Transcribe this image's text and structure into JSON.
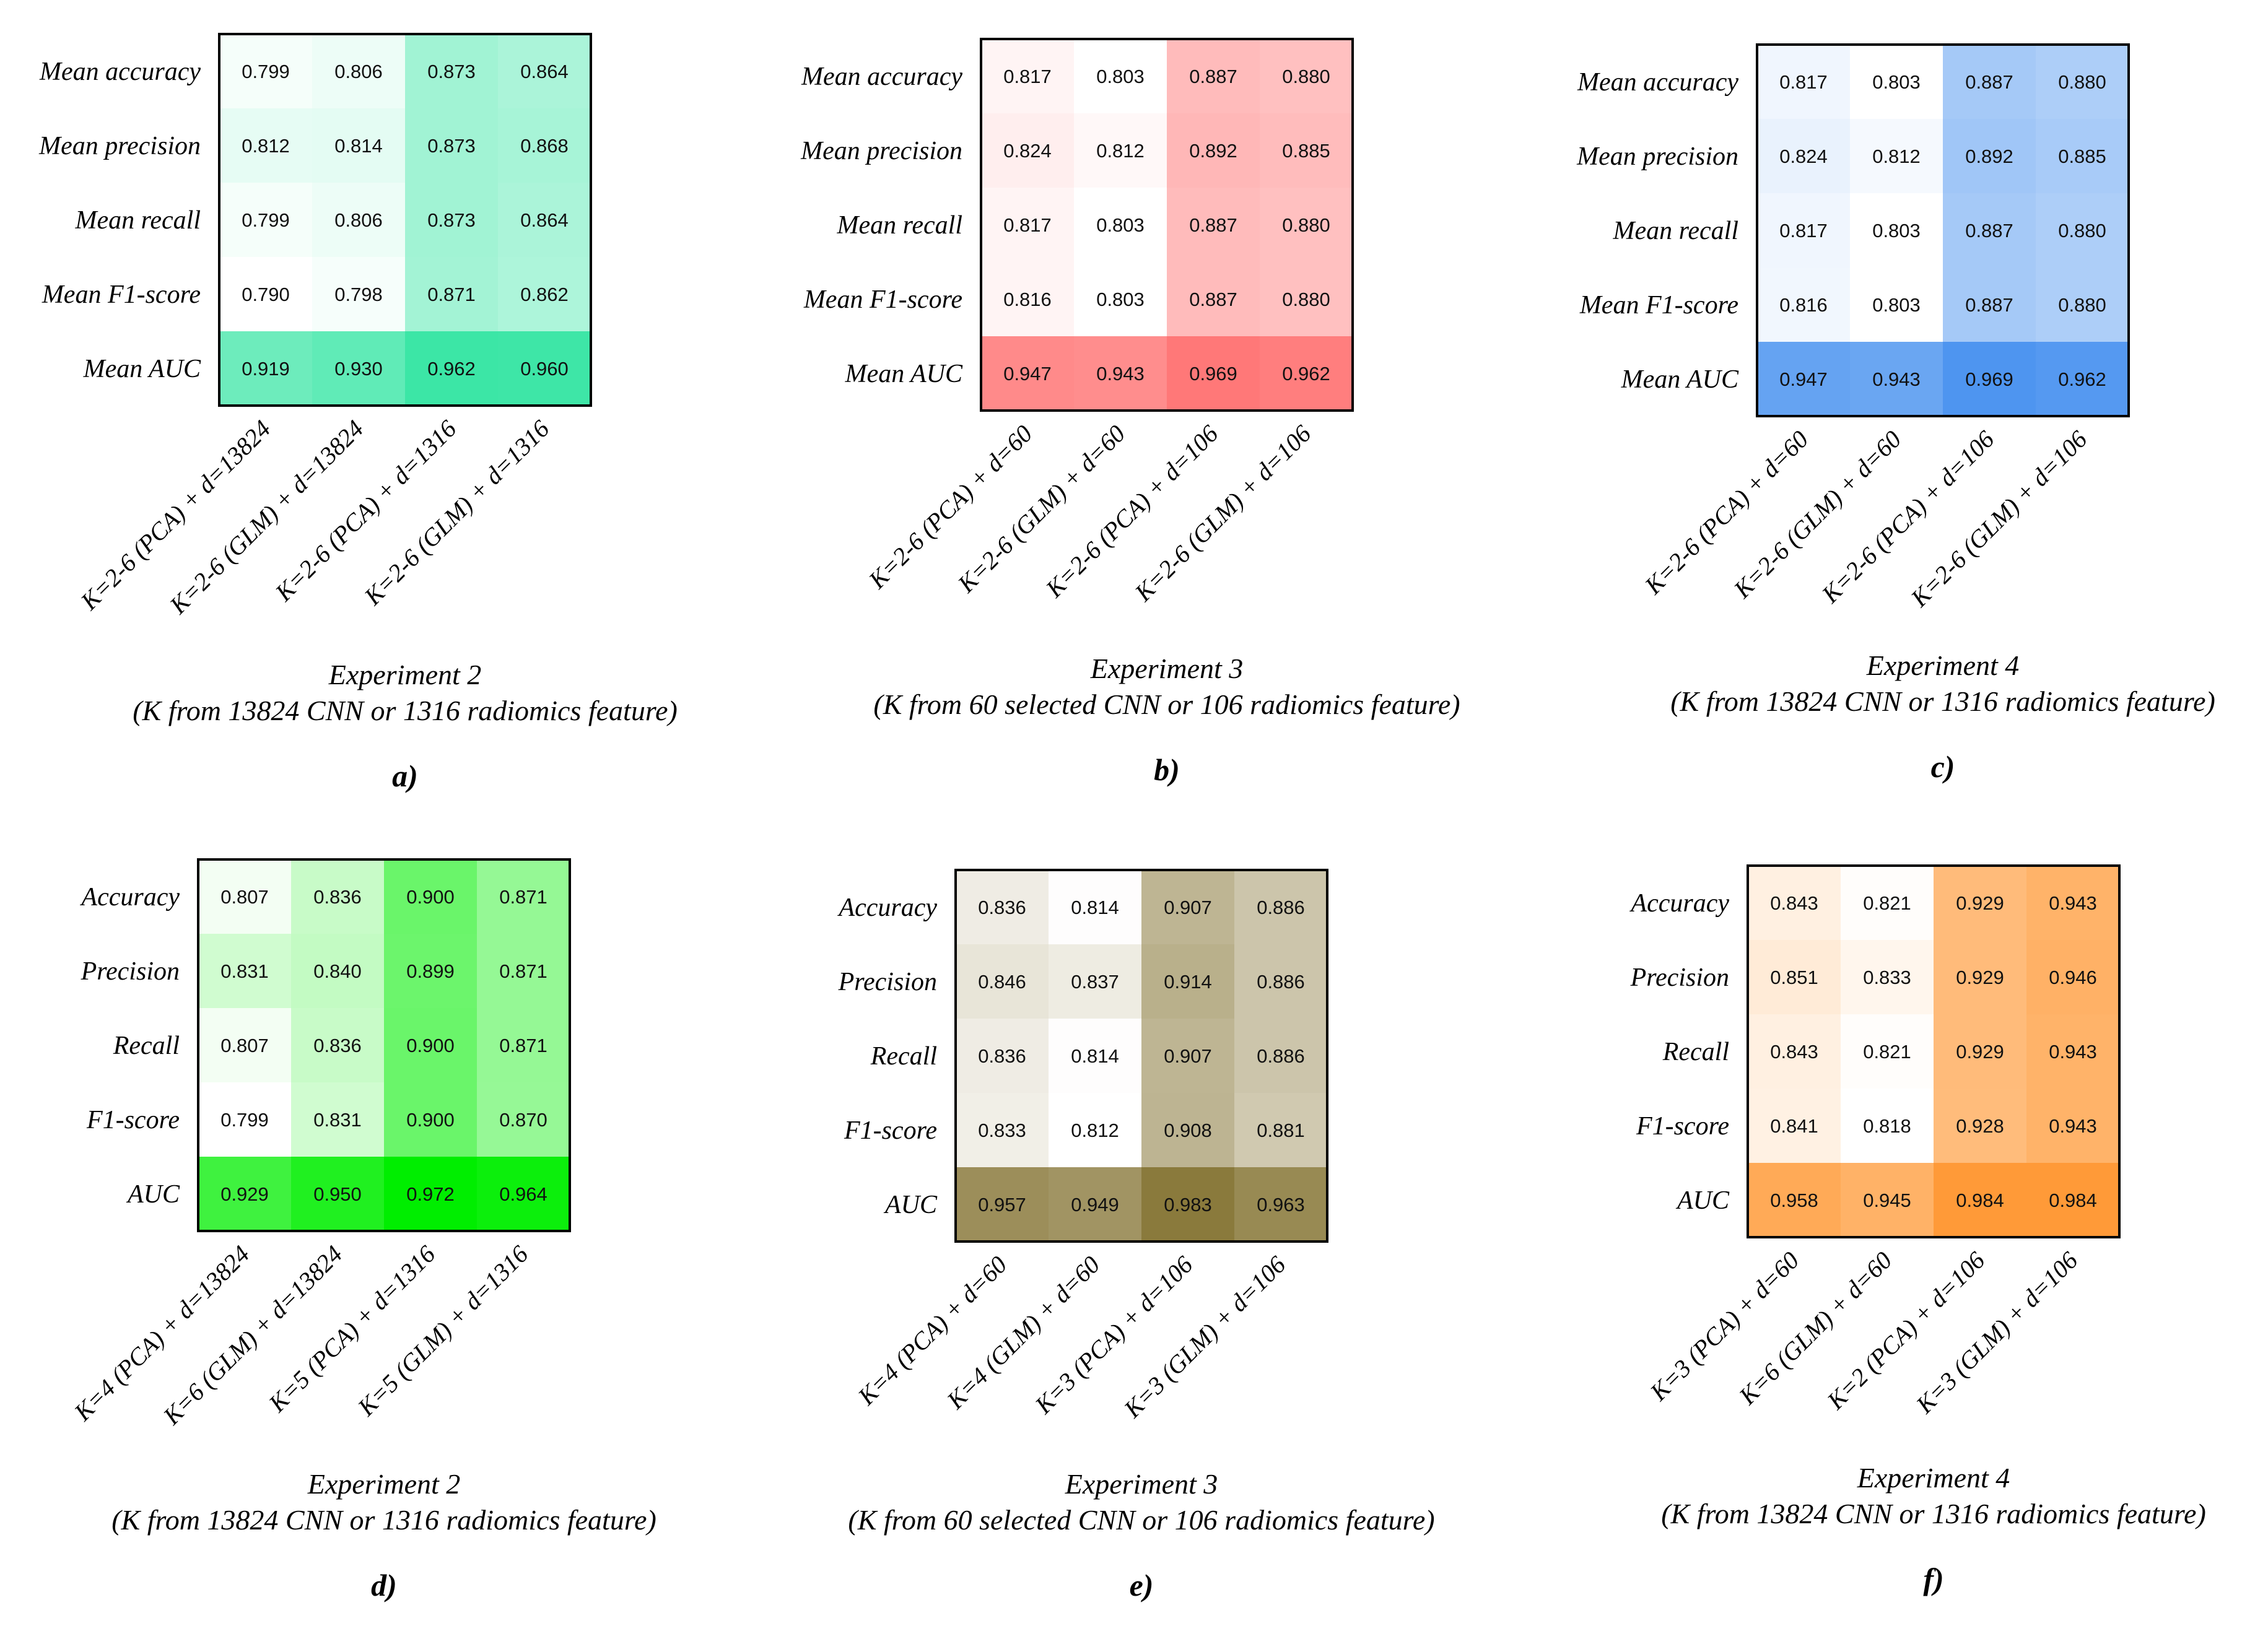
{
  "chart_data": [
    {
      "type": "heatmap",
      "panel": "a)",
      "title": "Experiment 2",
      "subtitle": "(K from 13824 CNN or 1316 radiomics feature)",
      "color": "#3CE6A6",
      "rows": [
        "Mean accuracy",
        "Mean precision",
        "Mean recall",
        "Mean F1-score",
        "Mean AUC"
      ],
      "columns": [
        "K=2-6 (PCA) + d=13824",
        "K=2-6 (GLM) + d=13824",
        "K=2-6 (PCA) + d=1316",
        "K=2-6 (GLM) + d=1316"
      ],
      "values": [
        [
          "0.799",
          "0.806",
          "0.873",
          "0.864"
        ],
        [
          "0.812",
          "0.814",
          "0.873",
          "0.868"
        ],
        [
          "0.799",
          "0.806",
          "0.873",
          "0.864"
        ],
        [
          "0.790",
          "0.798",
          "0.871",
          "0.862"
        ],
        [
          "0.919",
          "0.930",
          "0.962",
          "0.960"
        ]
      ]
    },
    {
      "type": "heatmap",
      "panel": "b)",
      "title": "Experiment 3",
      "subtitle": "(K from 60 selected CNN or 106 radiomics feature)",
      "color": "#FF7878",
      "rows": [
        "Mean accuracy",
        "Mean precision",
        "Mean recall",
        "Mean F1-score",
        "Mean AUC"
      ],
      "columns": [
        "K=2-6 (PCA) + d=60",
        "K=2-6 (GLM) + d=60",
        "K=2-6 (PCA) + d=106",
        "K=2-6 (GLM) + d=106"
      ],
      "values": [
        [
          "0.817",
          "0.803",
          "0.887",
          "0.880"
        ],
        [
          "0.824",
          "0.812",
          "0.892",
          "0.885"
        ],
        [
          "0.817",
          "0.803",
          "0.887",
          "0.880"
        ],
        [
          "0.816",
          "0.803",
          "0.887",
          "0.880"
        ],
        [
          "0.947",
          "0.943",
          "0.969",
          "0.962"
        ]
      ]
    },
    {
      "type": "heatmap",
      "panel": "c)",
      "title": "Experiment 4",
      "subtitle": "(K from 13824 CNN or 1316 radiomics feature)",
      "color": "#4E95F0",
      "rows": [
        "Mean accuracy",
        "Mean precision",
        "Mean recall",
        "Mean F1-score",
        "Mean AUC"
      ],
      "columns": [
        "K=2-6 (PCA) + d=60",
        "K=2-6 (GLM) + d=60",
        "K=2-6 (PCA) + d=106",
        "K=2-6 (GLM) + d=106"
      ],
      "values": [
        [
          "0.817",
          "0.803",
          "0.887",
          "0.880"
        ],
        [
          "0.824",
          "0.812",
          "0.892",
          "0.885"
        ],
        [
          "0.817",
          "0.803",
          "0.887",
          "0.880"
        ],
        [
          "0.816",
          "0.803",
          "0.887",
          "0.880"
        ],
        [
          "0.947",
          "0.943",
          "0.969",
          "0.962"
        ]
      ]
    },
    {
      "type": "heatmap",
      "panel": "d)",
      "title": "Experiment 2",
      "subtitle": "(K from 13824 CNN or 1316 radiomics feature)",
      "color": "#00EE00",
      "rows": [
        "Accuracy",
        "Precision",
        "Recall",
        "F1-score",
        "AUC"
      ],
      "columns": [
        "K=4 (PCA) + d=13824",
        "K=6 (GLM) + d=13824",
        "K=5 (PCA) + d=1316",
        "K=5 (GLM) + d=1316"
      ],
      "values": [
        [
          "0.807",
          "0.836",
          "0.900",
          "0.871"
        ],
        [
          "0.831",
          "0.840",
          "0.899",
          "0.871"
        ],
        [
          "0.807",
          "0.836",
          "0.900",
          "0.871"
        ],
        [
          "0.799",
          "0.831",
          "0.900",
          "0.870"
        ],
        [
          "0.929",
          "0.950",
          "0.972",
          "0.964"
        ]
      ]
    },
    {
      "type": "heatmap",
      "panel": "e)",
      "title": "Experiment 3",
      "subtitle": "(K from 60 selected CNN or 106 radiomics feature)",
      "color": "#8A7A3C",
      "rows": [
        "Accuracy",
        "Precision",
        "Recall",
        "F1-score",
        "AUC"
      ],
      "columns": [
        "K=4 (PCA) + d=60",
        "K=4 (GLM) + d=60",
        "K=3 (PCA) + d=106",
        "K=3 (GLM) + d=106"
      ],
      "values": [
        [
          "0.836",
          "0.814",
          "0.907",
          "0.886"
        ],
        [
          "0.846",
          "0.837",
          "0.914",
          "0.886"
        ],
        [
          "0.836",
          "0.814",
          "0.907",
          "0.886"
        ],
        [
          "0.833",
          "0.812",
          "0.908",
          "0.881"
        ],
        [
          "0.957",
          "0.949",
          "0.983",
          "0.963"
        ]
      ]
    },
    {
      "type": "heatmap",
      "panel": "f)",
      "title": "Experiment 4",
      "subtitle": "(K from 13824 CNN or 1316 radiomics feature)",
      "color": "#FF9A38",
      "rows": [
        "Accuracy",
        "Precision",
        "Recall",
        "F1-score",
        "AUC"
      ],
      "columns": [
        "K=3 (PCA) + d=60",
        "K=6 (GLM) + d=60",
        "K=2 (PCA) + d=106",
        "K=3 (GLM) + d=106"
      ],
      "values": [
        [
          "0.843",
          "0.821",
          "0.929",
          "0.943"
        ],
        [
          "0.851",
          "0.833",
          "0.929",
          "0.946"
        ],
        [
          "0.843",
          "0.821",
          "0.929",
          "0.943"
        ],
        [
          "0.841",
          "0.818",
          "0.928",
          "0.943"
        ],
        [
          "0.958",
          "0.945",
          "0.984",
          "0.984"
        ]
      ]
    }
  ]
}
